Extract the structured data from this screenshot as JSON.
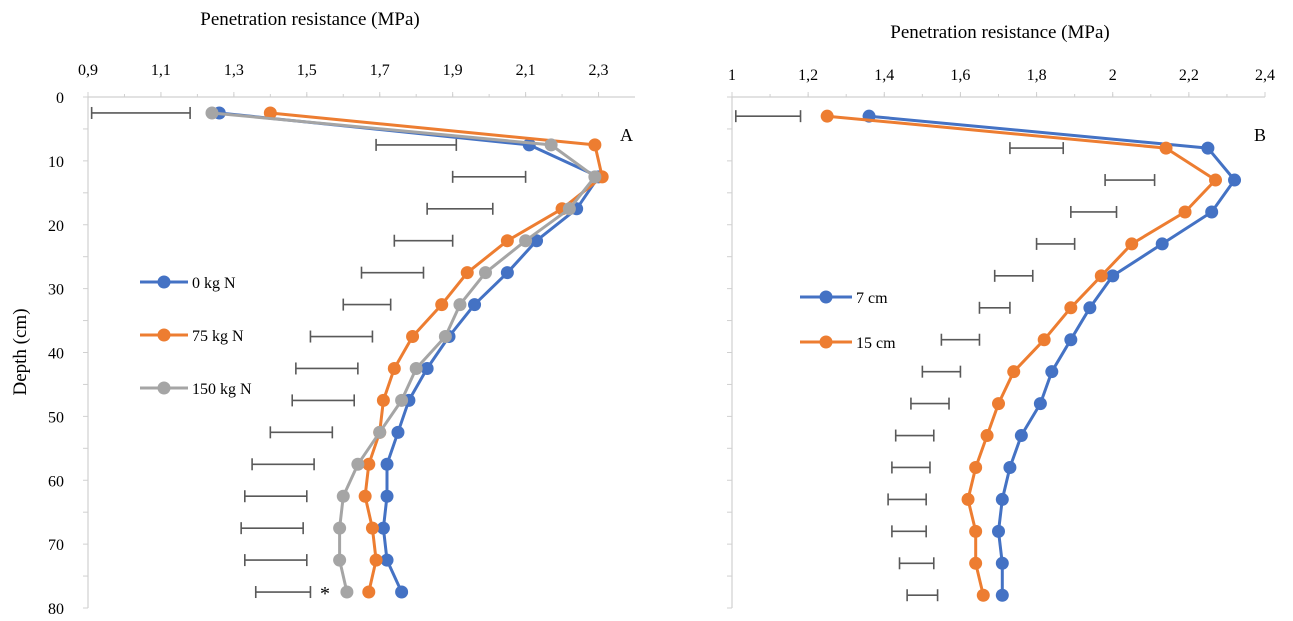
{
  "figure": {
    "ylabel": "Depth (cm)"
  },
  "chart_data": [
    {
      "type": "line",
      "panel_label": "A",
      "xlabel": "Penetration resistance (MPa)",
      "x_axis_position": "top",
      "xlim": [
        0.9,
        2.4
      ],
      "xticks": [
        "0,9",
        "1,1",
        "1,3",
        "1,5",
        "1,7",
        "1,9",
        "2,1",
        "2,3"
      ],
      "ylim": [
        0,
        80
      ],
      "y_inverted": true,
      "yticks": [
        "0",
        "10",
        "20",
        "30",
        "40",
        "50",
        "60",
        "70",
        "80"
      ],
      "ylabel": "Depth (cm)",
      "depths": [
        2.5,
        7.5,
        12.5,
        17.5,
        22.5,
        27.5,
        32.5,
        37.5,
        42.5,
        47.5,
        52.5,
        57.5,
        62.5,
        67.5,
        72.5,
        77.5
      ],
      "series": [
        {
          "name": "0 kg N",
          "color": "#4472C4",
          "x": [
            1.26,
            2.11,
            2.3,
            2.24,
            2.13,
            2.05,
            1.96,
            1.89,
            1.83,
            1.78,
            1.75,
            1.72,
            1.72,
            1.71,
            1.72,
            1.76
          ]
        },
        {
          "name": "75 kg N",
          "color": "#ED7D31",
          "x": [
            1.4,
            2.29,
            2.31,
            2.2,
            2.05,
            1.94,
            1.87,
            1.79,
            1.74,
            1.71,
            1.7,
            1.67,
            1.66,
            1.68,
            1.69,
            1.67
          ]
        },
        {
          "name": "150 kg N",
          "color": "#A5A5A5",
          "x": [
            1.24,
            2.17,
            2.29,
            2.22,
            2.1,
            1.99,
            1.92,
            1.88,
            1.8,
            1.76,
            1.7,
            1.64,
            1.6,
            1.59,
            1.59,
            1.61
          ]
        }
      ],
      "error_bars": {
        "color": "#595959",
        "depths": [
          2.5,
          7.5,
          12.5,
          17.5,
          22.5,
          27.5,
          32.5,
          37.5,
          42.5,
          47.5,
          52.5,
          57.5,
          62.5,
          67.5,
          72.5,
          77.5
        ],
        "x_start": [
          0.91,
          1.69,
          1.9,
          1.83,
          1.74,
          1.65,
          1.6,
          1.51,
          1.47,
          1.46,
          1.4,
          1.35,
          1.33,
          1.32,
          1.33,
          1.36
        ],
        "x_end": [
          1.18,
          1.91,
          2.1,
          2.01,
          1.9,
          1.82,
          1.73,
          1.68,
          1.64,
          1.63,
          1.57,
          1.52,
          1.5,
          1.49,
          1.5,
          1.51
        ]
      },
      "annotation": "*",
      "annotation_depth": 77.5,
      "annotation_x": 1.55,
      "legend_position": "middle-left"
    },
    {
      "type": "line",
      "panel_label": "B",
      "xlabel": "Penetration resistance (MPa)",
      "x_axis_position": "top",
      "xlim": [
        1.0,
        2.4
      ],
      "xticks": [
        "1",
        "1,2",
        "1,4",
        "1,6",
        "1,8",
        "2",
        "2,2",
        "2,4"
      ],
      "ylim": [
        0,
        80
      ],
      "y_inverted": true,
      "yticks": [],
      "depths": [
        3,
        8,
        13,
        18,
        23,
        28,
        33,
        38,
        43,
        48,
        53,
        58,
        63,
        68,
        73,
        78
      ],
      "series": [
        {
          "name": "7 cm",
          "color": "#4472C4",
          "x": [
            1.36,
            2.25,
            2.32,
            2.26,
            2.13,
            2.0,
            1.94,
            1.89,
            1.84,
            1.81,
            1.76,
            1.73,
            1.71,
            1.7,
            1.71,
            1.71
          ]
        },
        {
          "name": "15 cm",
          "color": "#ED7D31",
          "x": [
            1.25,
            2.14,
            2.27,
            2.19,
            2.05,
            1.97,
            1.89,
            1.82,
            1.74,
            1.7,
            1.67,
            1.64,
            1.62,
            1.64,
            1.64,
            1.66
          ]
        }
      ],
      "error_bars": {
        "color": "#595959",
        "depths": [
          3,
          8,
          13,
          18,
          23,
          28,
          33,
          38,
          43,
          48,
          53,
          58,
          63,
          68,
          73,
          78
        ],
        "x_start": [
          1.01,
          1.73,
          1.98,
          1.89,
          1.8,
          1.69,
          1.65,
          1.55,
          1.5,
          1.47,
          1.43,
          1.42,
          1.41,
          1.42,
          1.44,
          1.46
        ],
        "x_end": [
          1.18,
          1.87,
          2.11,
          2.01,
          1.9,
          1.79,
          1.73,
          1.65,
          1.6,
          1.57,
          1.53,
          1.52,
          1.51,
          1.51,
          1.53,
          1.54
        ]
      },
      "legend_position": "middle-left"
    }
  ]
}
